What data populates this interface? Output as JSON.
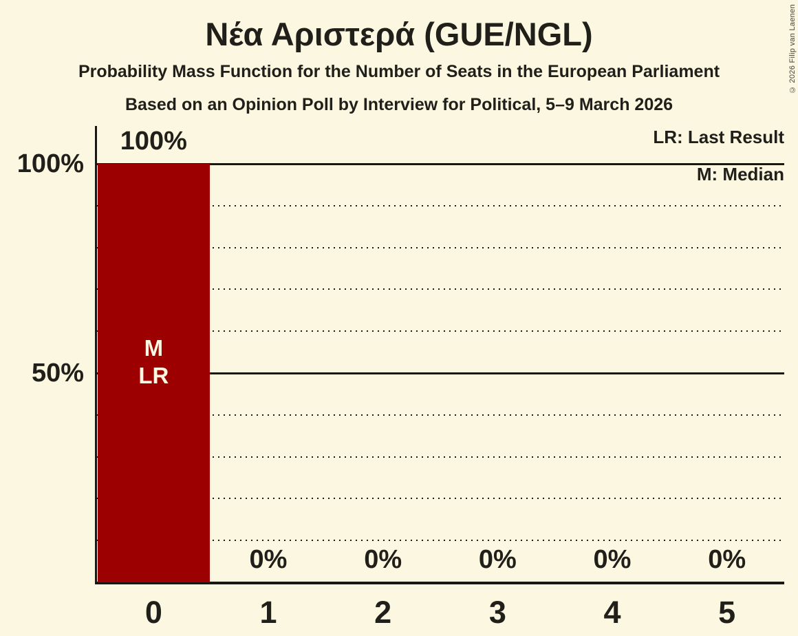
{
  "header": {
    "title": "Νέα Αριστερά (GUE/NGL)",
    "subtitle": "Probability Mass Function for the Number of Seats in the European Parliament",
    "source_line": "Based on an Opinion Poll by Interview for Political, 5–9 March 2026"
  },
  "legend": {
    "lr": "LR: Last Result",
    "m": "M: Median"
  },
  "copyright": "© 2026 Filip van Laenen",
  "colors": {
    "background": "#FCF7E0",
    "bar": "#9C0000",
    "text": "#201F1A",
    "line": "#181711"
  },
  "chart_data": {
    "type": "bar",
    "title": "Νέα Αριστερά (GUE/NGL)",
    "subtitle": "Probability Mass Function for the Number of Seats in the European Parliament",
    "source": "Based on an Opinion Poll by Interview for Political, 5–9 March 2026",
    "xlabel": "",
    "ylabel": "",
    "categories": [
      "0",
      "1",
      "2",
      "3",
      "4",
      "5"
    ],
    "values": [
      100,
      0,
      0,
      0,
      0,
      0
    ],
    "value_labels": [
      "100%",
      "0%",
      "0%",
      "0%",
      "0%",
      "0%"
    ],
    "bar_annotations": [
      [
        "M",
        "LR"
      ],
      [],
      [],
      [],
      [],
      []
    ],
    "y_ticks": [
      {
        "label": "100%",
        "value": 100
      },
      {
        "label": "50%",
        "value": 50
      }
    ],
    "ylim": [
      0,
      100
    ],
    "gridlines": {
      "solid": [
        100,
        50
      ],
      "dotted": [
        90,
        80,
        70,
        60,
        40,
        30,
        20,
        10
      ]
    },
    "legend_entries": [
      "LR: Last Result",
      "M: Median"
    ],
    "legend_position": "top-right",
    "median_seat": "0",
    "last_result_seat": "0"
  }
}
